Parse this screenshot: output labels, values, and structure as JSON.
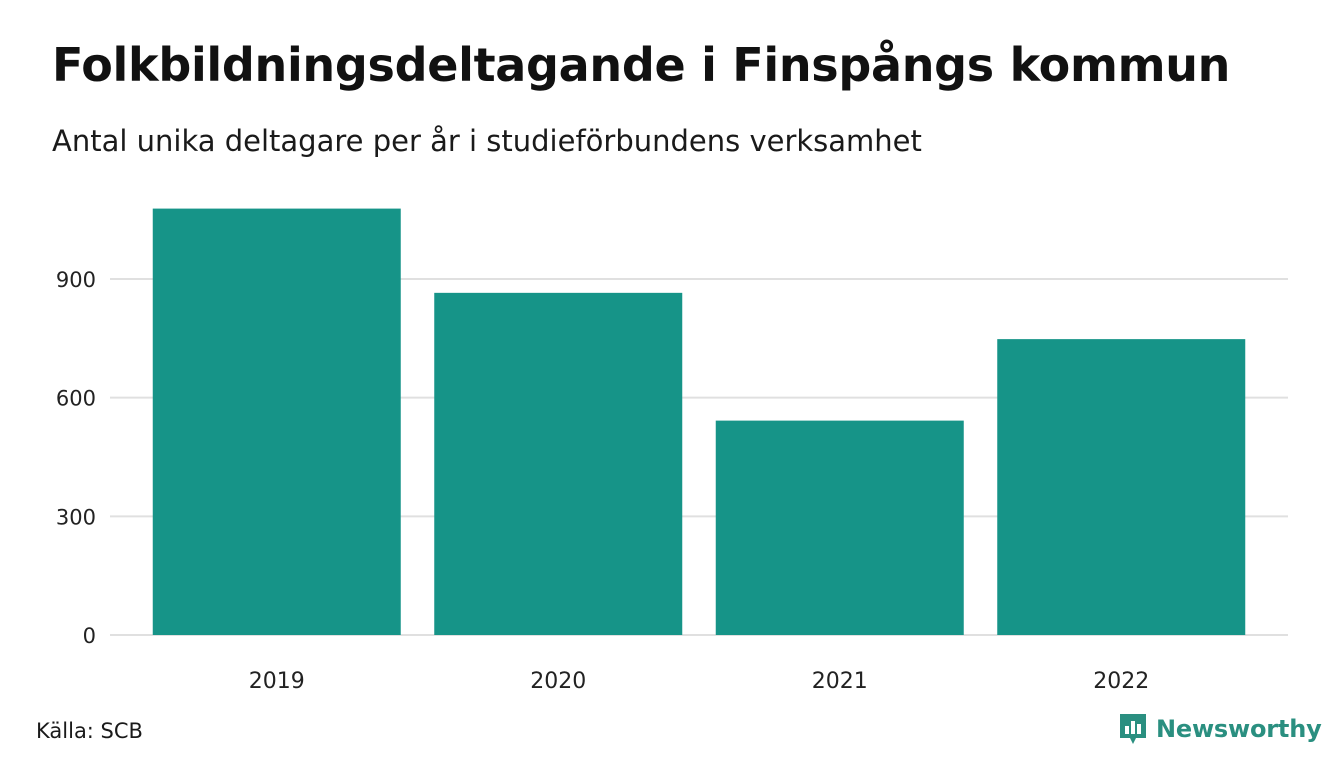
{
  "title": "Folkbildningsdeltagande i Finspångs kommun",
  "subtitle": "Antal unika deltagare per år i studieförbundens verksamhet",
  "source": "Källa: SCB",
  "brand": {
    "name": "Newsworthy",
    "color": "#2a8f80",
    "icon": "newsworthy-logo-icon"
  },
  "colors": {
    "bar": "#169488",
    "grid": "#e0e0e0",
    "text": "#222222"
  },
  "chart_data": {
    "type": "bar",
    "categories": [
      "2019",
      "2020",
      "2021",
      "2022"
    ],
    "values": [
      1078,
      865,
      542,
      748
    ],
    "yticks": [
      0,
      300,
      600,
      900
    ],
    "ylim": [
      0,
      1150
    ],
    "grid": true,
    "xlabel": "",
    "ylabel": ""
  }
}
